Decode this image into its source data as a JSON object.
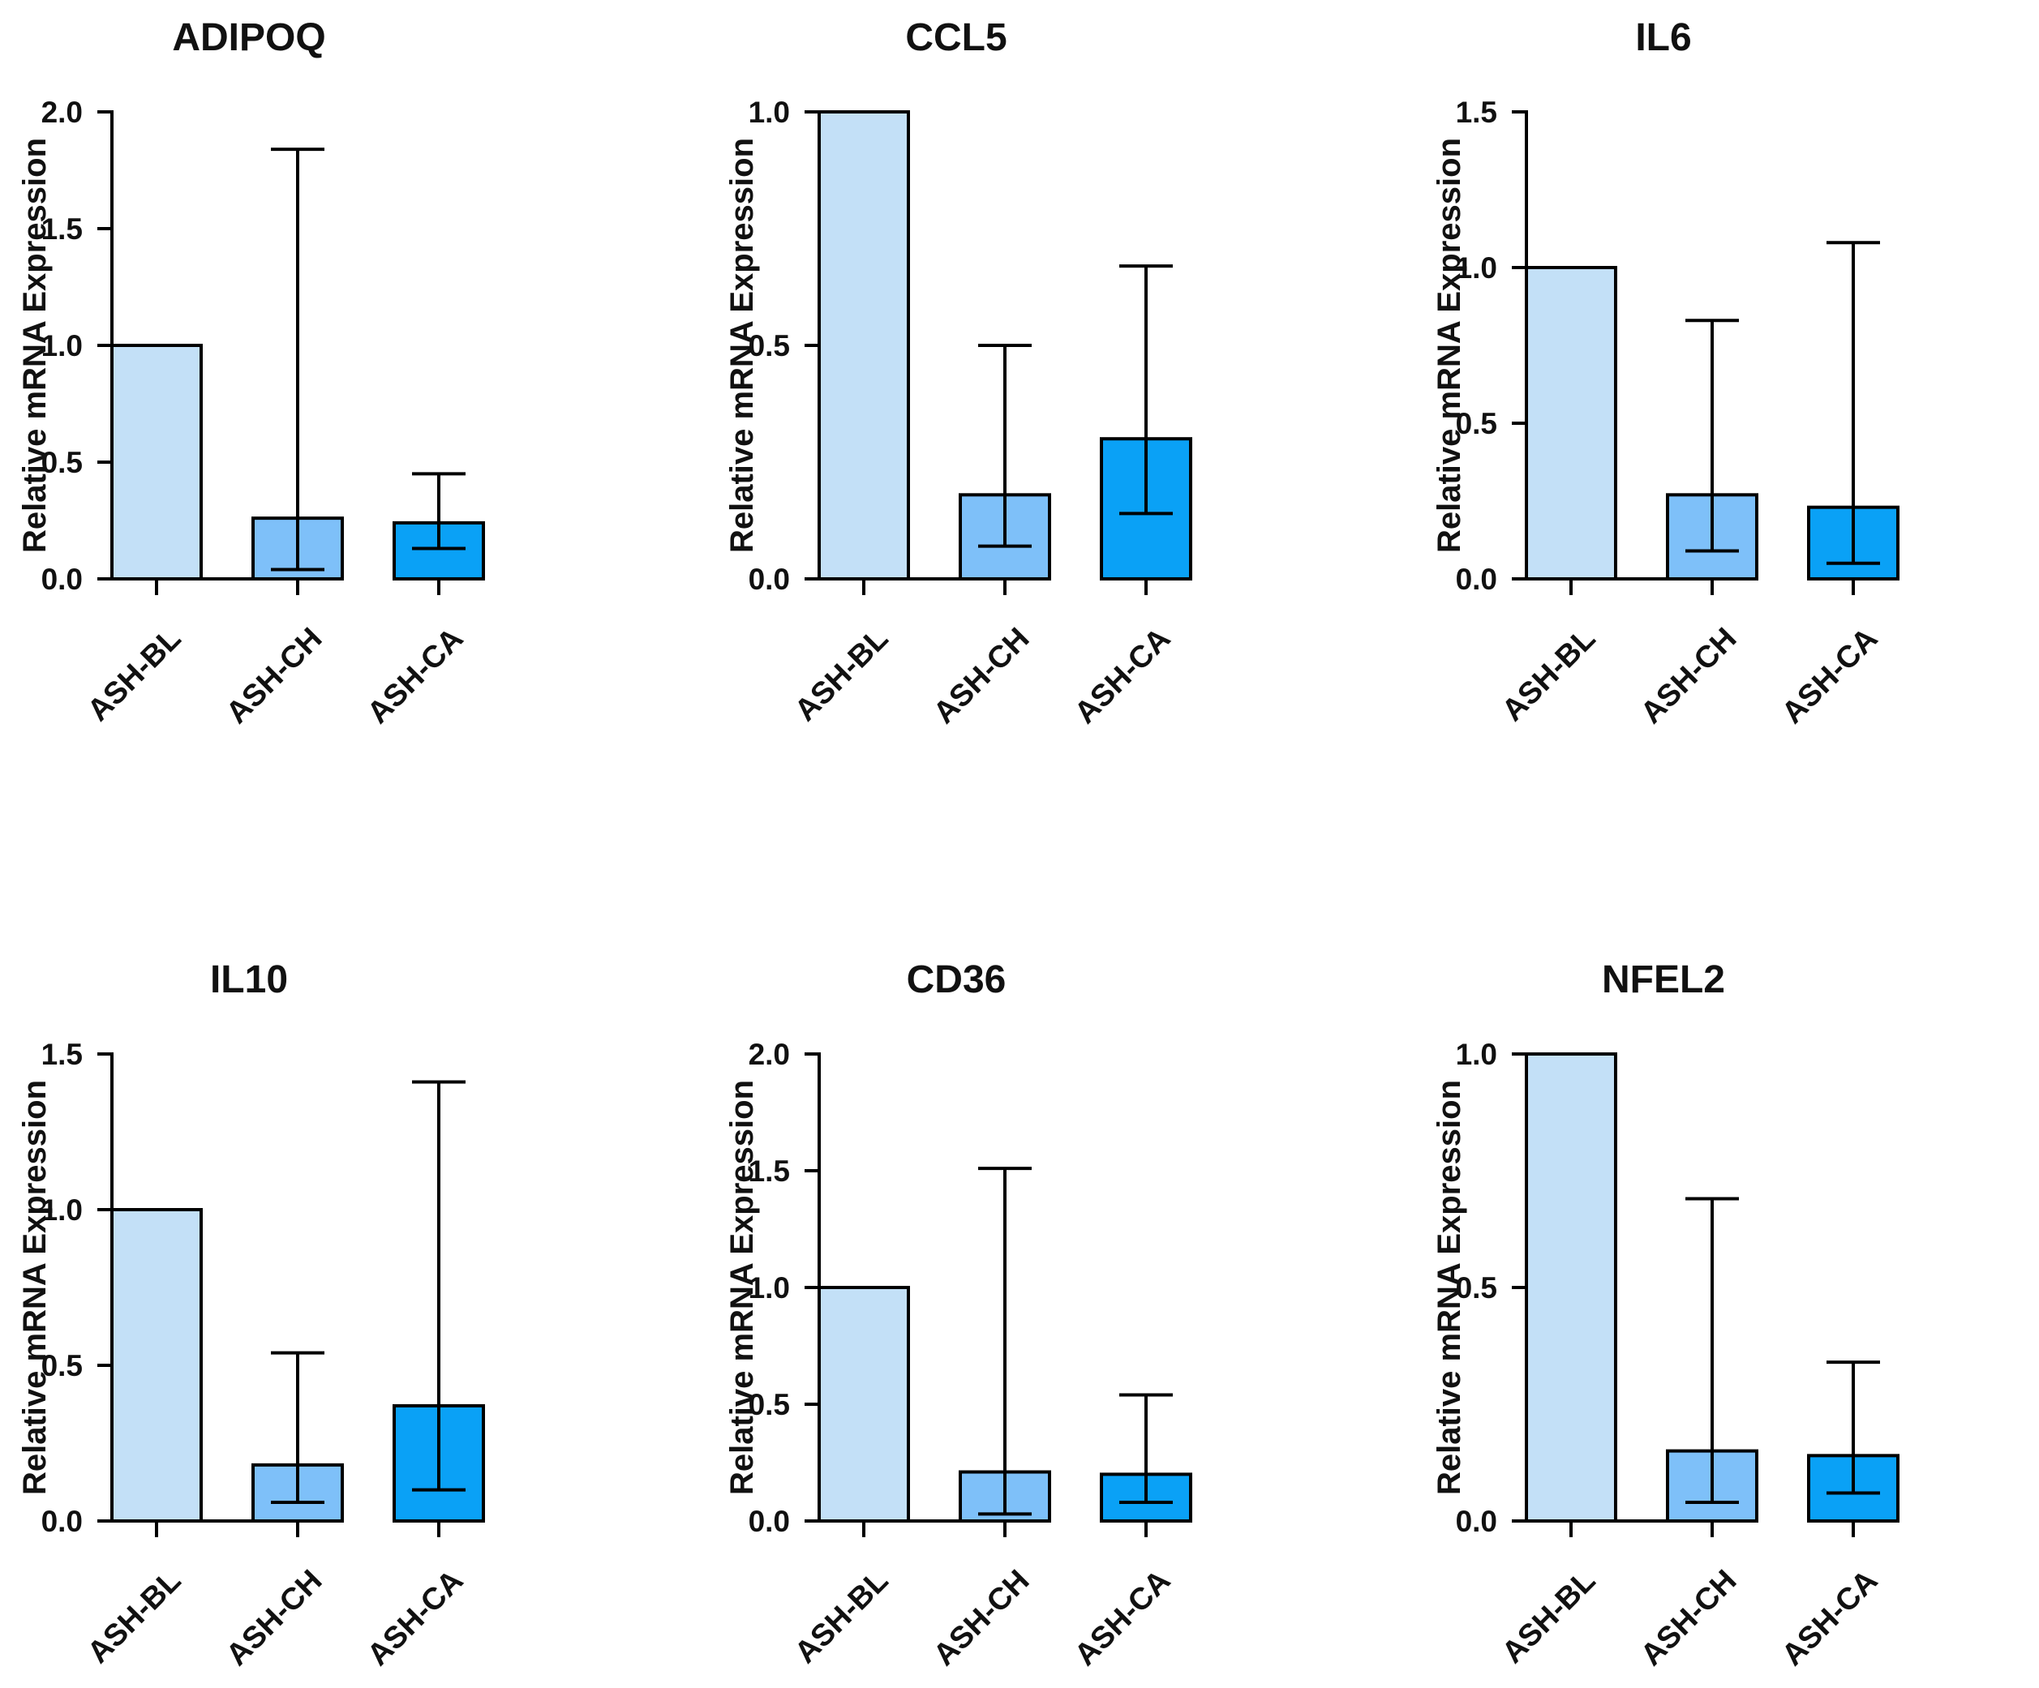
{
  "colors": {
    "ASH-BL": "#c3e0f7",
    "ASH-CH": "#7ec0f9",
    "ASH-CA": "#0aa1f6",
    "axis": "#000000"
  },
  "chart_data": [
    {
      "type": "bar",
      "title": "ADIPOQ",
      "ylabel": "Relative mRNA Expression",
      "xlabel": "",
      "categories": [
        "ASH-BL",
        "ASH-CH",
        "ASH-CA"
      ],
      "values": [
        1.0,
        0.26,
        0.24
      ],
      "error_low": [
        null,
        0.04,
        0.13
      ],
      "error_high": [
        null,
        1.84,
        0.45
      ],
      "ylim": [
        0,
        2.0
      ],
      "yticks": [
        0,
        0.5,
        1.0,
        1.5,
        2.0
      ],
      "ytick_labels": [
        "0.0",
        "0.5",
        "1.0",
        "1.5",
        "2.0"
      ]
    },
    {
      "type": "bar",
      "title": "CCL5",
      "ylabel": "Relative mRNA Expression",
      "xlabel": "",
      "categories": [
        "ASH-BL",
        "ASH-CH",
        "ASH-CA"
      ],
      "values": [
        1.0,
        0.18,
        0.3
      ],
      "error_low": [
        null,
        0.07,
        0.14
      ],
      "error_high": [
        null,
        0.5,
        0.67
      ],
      "ylim": [
        0,
        1.0
      ],
      "yticks": [
        0,
        0.5,
        1.0
      ],
      "ytick_labels": [
        "0.0",
        "0.5",
        "1.0"
      ]
    },
    {
      "type": "bar",
      "title": "IL6",
      "ylabel": "Relative mRNA Expression",
      "xlabel": "",
      "categories": [
        "ASH-BL",
        "ASH-CH",
        "ASH-CA"
      ],
      "values": [
        1.0,
        0.27,
        0.23
      ],
      "error_low": [
        null,
        0.09,
        0.05
      ],
      "error_high": [
        null,
        0.83,
        1.08
      ],
      "ylim": [
        0,
        1.5
      ],
      "yticks": [
        0,
        0.5,
        1.0,
        1.5
      ],
      "ytick_labels": [
        "0.0",
        "0.5",
        "1.0",
        "1.5"
      ]
    },
    {
      "type": "bar",
      "title": "IL10",
      "ylabel": "Relative mRNA Expression",
      "xlabel": "",
      "categories": [
        "ASH-BL",
        "ASH-CH",
        "ASH-CA"
      ],
      "values": [
        1.0,
        0.18,
        0.37
      ],
      "error_low": [
        null,
        0.06,
        0.1
      ],
      "error_high": [
        null,
        0.54,
        1.41
      ],
      "ylim": [
        0,
        1.5
      ],
      "yticks": [
        0,
        0.5,
        1.0,
        1.5
      ],
      "ytick_labels": [
        "0.0",
        "0.5",
        "1.0",
        "1.5"
      ]
    },
    {
      "type": "bar",
      "title": "CD36",
      "ylabel": "Relative mRNA Expression",
      "xlabel": "",
      "categories": [
        "ASH-BL",
        "ASH-CH",
        "ASH-CA"
      ],
      "values": [
        1.0,
        0.21,
        0.2
      ],
      "error_low": [
        null,
        0.03,
        0.08
      ],
      "error_high": [
        null,
        1.51,
        0.54
      ],
      "ylim": [
        0,
        2.0
      ],
      "yticks": [
        0,
        0.5,
        1.0,
        1.5,
        2.0
      ],
      "ytick_labels": [
        "0.0",
        "0.5",
        "1.0",
        "1.5",
        "2.0"
      ]
    },
    {
      "type": "bar",
      "title": "NFEL2",
      "ylabel": "Relative mRNA Expression",
      "xlabel": "",
      "categories": [
        "ASH-BL",
        "ASH-CH",
        "ASH-CA"
      ],
      "values": [
        1.0,
        0.15,
        0.14
      ],
      "error_low": [
        null,
        0.04,
        0.06
      ],
      "error_high": [
        null,
        0.69,
        0.34
      ],
      "ylim": [
        0,
        1.0
      ],
      "yticks": [
        0,
        0.5,
        1.0
      ],
      "ytick_labels": [
        "0.0",
        "0.5",
        "1.0"
      ]
    }
  ]
}
